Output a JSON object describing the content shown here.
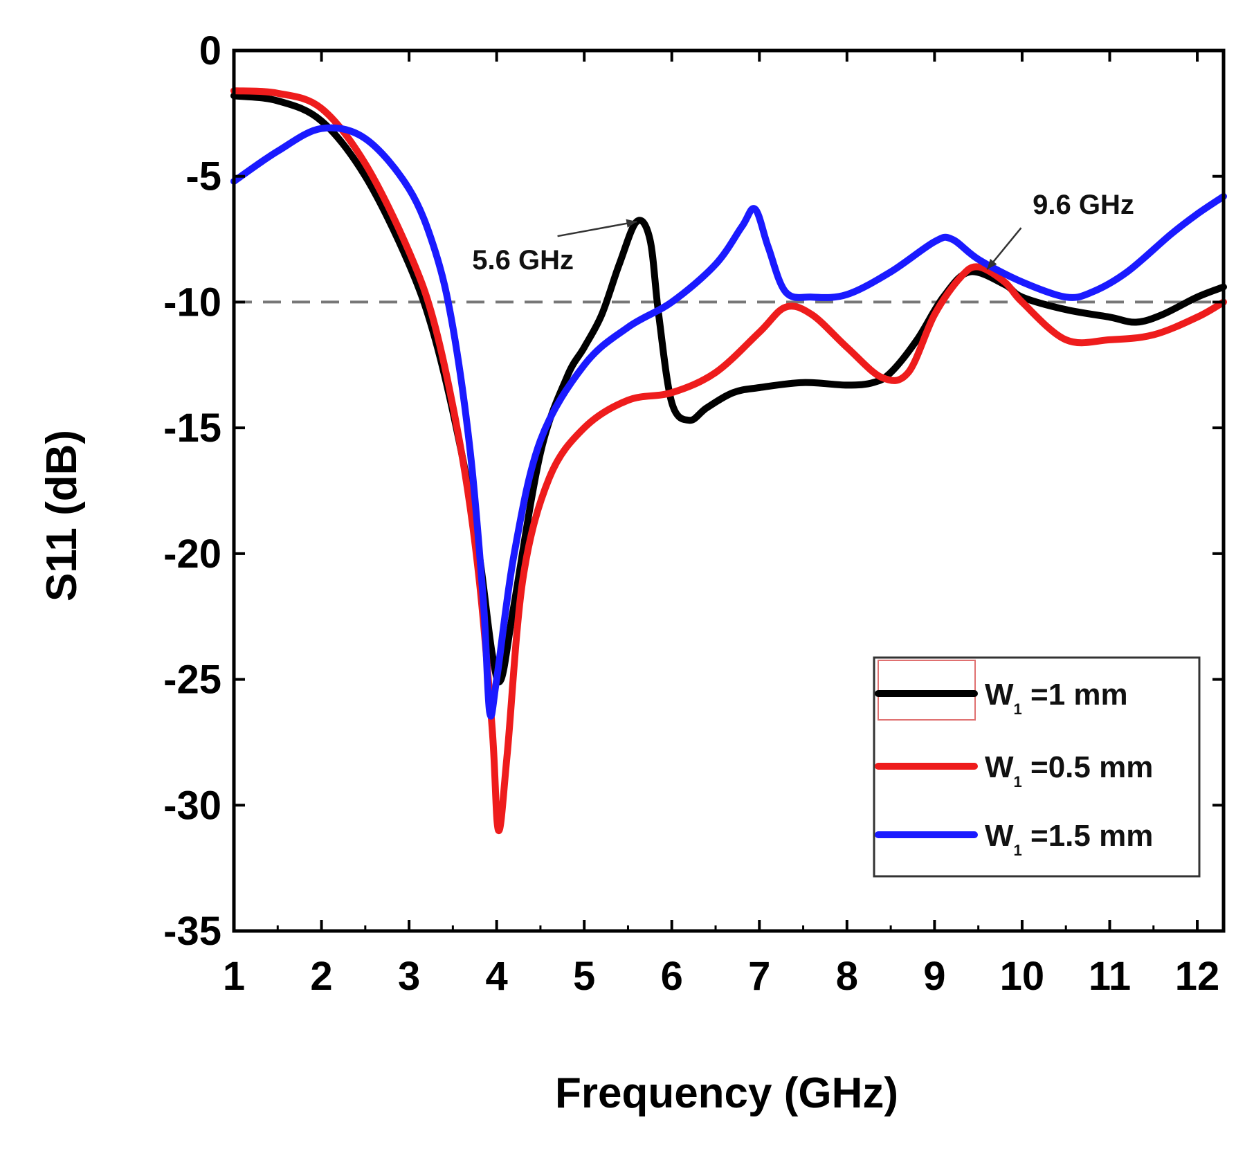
{
  "chart_data": {
    "type": "line",
    "title": "",
    "xlabel": "Frequency (GHz)",
    "ylabel": "S11 (dB)",
    "xlim": [
      1,
      12.3
    ],
    "ylim": [
      -35,
      0
    ],
    "x_ticks": [
      1,
      2,
      3,
      4,
      5,
      6,
      7,
      8,
      9,
      10,
      11,
      12
    ],
    "y_ticks": [
      0,
      -5,
      -10,
      -15,
      -20,
      -25,
      -30,
      -35
    ],
    "x_tick_labels": [
      "1",
      "2",
      "3",
      "4",
      "5",
      "6",
      "7",
      "8",
      "9",
      "10",
      "11",
      "12"
    ],
    "y_tick_labels": [
      "0",
      "-5",
      "-10",
      "-15",
      "-20",
      "-25",
      "-30",
      "-35"
    ],
    "reference_line": {
      "y": -10,
      "style": "dashed",
      "color": "#777777"
    },
    "legend_position": "bottom-right",
    "series": [
      {
        "name": "W",
        "subscript": "1",
        "suffix": " =1 mm",
        "color": "#000000",
        "points": [
          [
            1,
            -1.8
          ],
          [
            1.5,
            -2.0
          ],
          [
            2,
            -2.8
          ],
          [
            2.5,
            -5.0
          ],
          [
            3,
            -8.5
          ],
          [
            3.3,
            -11.5
          ],
          [
            3.6,
            -16.0
          ],
          [
            3.8,
            -20.0
          ],
          [
            3.95,
            -24.0
          ],
          [
            4.05,
            -25.0
          ],
          [
            4.2,
            -22.0
          ],
          [
            4.5,
            -16.0
          ],
          [
            4.8,
            -13.0
          ],
          [
            5,
            -11.8
          ],
          [
            5.2,
            -10.5
          ],
          [
            5.4,
            -8.5
          ],
          [
            5.6,
            -6.8
          ],
          [
            5.75,
            -7.5
          ],
          [
            5.85,
            -10.5
          ],
          [
            6.0,
            -14.0
          ],
          [
            6.2,
            -14.7
          ],
          [
            6.4,
            -14.2
          ],
          [
            6.7,
            -13.6
          ],
          [
            7,
            -13.4
          ],
          [
            7.5,
            -13.2
          ],
          [
            8,
            -13.3
          ],
          [
            8.3,
            -13.2
          ],
          [
            8.5,
            -12.8
          ],
          [
            8.8,
            -11.5
          ],
          [
            9.1,
            -9.8
          ],
          [
            9.4,
            -8.8
          ],
          [
            9.8,
            -9.3
          ],
          [
            10,
            -9.8
          ],
          [
            10.5,
            -10.3
          ],
          [
            11,
            -10.6
          ],
          [
            11.3,
            -10.8
          ],
          [
            11.6,
            -10.5
          ],
          [
            12,
            -9.8
          ],
          [
            12.3,
            -9.4
          ]
        ]
      },
      {
        "name": "W",
        "subscript": "1",
        "suffix": " =0.5 mm",
        "color": "#ee1c1c",
        "points": [
          [
            1,
            -1.6
          ],
          [
            1.5,
            -1.7
          ],
          [
            2,
            -2.3
          ],
          [
            2.5,
            -4.5
          ],
          [
            3,
            -8.0
          ],
          [
            3.3,
            -11.0
          ],
          [
            3.6,
            -16.0
          ],
          [
            3.8,
            -21.0
          ],
          [
            3.95,
            -27.0
          ],
          [
            4.02,
            -31.0
          ],
          [
            4.12,
            -28.0
          ],
          [
            4.3,
            -21.0
          ],
          [
            4.6,
            -17.0
          ],
          [
            5,
            -15.0
          ],
          [
            5.5,
            -13.9
          ],
          [
            6,
            -13.6
          ],
          [
            6.5,
            -12.8
          ],
          [
            7,
            -11.2
          ],
          [
            7.3,
            -10.2
          ],
          [
            7.6,
            -10.5
          ],
          [
            8,
            -11.8
          ],
          [
            8.4,
            -13.0
          ],
          [
            8.7,
            -12.8
          ],
          [
            9,
            -10.5
          ],
          [
            9.3,
            -9.0
          ],
          [
            9.5,
            -8.6
          ],
          [
            9.8,
            -9.2
          ],
          [
            10,
            -10.0
          ],
          [
            10.5,
            -11.5
          ],
          [
            11,
            -11.5
          ],
          [
            11.5,
            -11.3
          ],
          [
            12,
            -10.6
          ],
          [
            12.3,
            -10.0
          ]
        ]
      },
      {
        "name": "W",
        "subscript": "1",
        "suffix": " =1.5 mm",
        "color": "#1a1aff",
        "points": [
          [
            1,
            -5.2
          ],
          [
            1.5,
            -4.0
          ],
          [
            2,
            -3.1
          ],
          [
            2.5,
            -3.5
          ],
          [
            3,
            -5.5
          ],
          [
            3.3,
            -8.0
          ],
          [
            3.5,
            -11.0
          ],
          [
            3.7,
            -16.0
          ],
          [
            3.85,
            -22.0
          ],
          [
            3.92,
            -26.3
          ],
          [
            4.0,
            -25.0
          ],
          [
            4.2,
            -20.0
          ],
          [
            4.5,
            -15.5
          ],
          [
            5,
            -12.5
          ],
          [
            5.5,
            -11.0
          ],
          [
            6,
            -10.0
          ],
          [
            6.5,
            -8.5
          ],
          [
            6.8,
            -7.0
          ],
          [
            6.95,
            -6.3
          ],
          [
            7.1,
            -7.8
          ],
          [
            7.3,
            -9.6
          ],
          [
            7.6,
            -9.8
          ],
          [
            8,
            -9.7
          ],
          [
            8.5,
            -8.8
          ],
          [
            9,
            -7.6
          ],
          [
            9.2,
            -7.5
          ],
          [
            9.5,
            -8.3
          ],
          [
            10,
            -9.2
          ],
          [
            10.5,
            -9.8
          ],
          [
            10.8,
            -9.6
          ],
          [
            11.2,
            -8.8
          ],
          [
            11.7,
            -7.3
          ],
          [
            12,
            -6.5
          ],
          [
            12.3,
            -5.8
          ]
        ]
      }
    ],
    "annotations": [
      {
        "text": "5.6 GHz",
        "x": 5.6,
        "y": -6.8,
        "label_x": 4.3,
        "label_y": -8.7
      },
      {
        "text": "9.6 GHz",
        "x": 9.6,
        "y": -8.7,
        "label_x": 10.7,
        "label_y": -6.5
      }
    ]
  }
}
